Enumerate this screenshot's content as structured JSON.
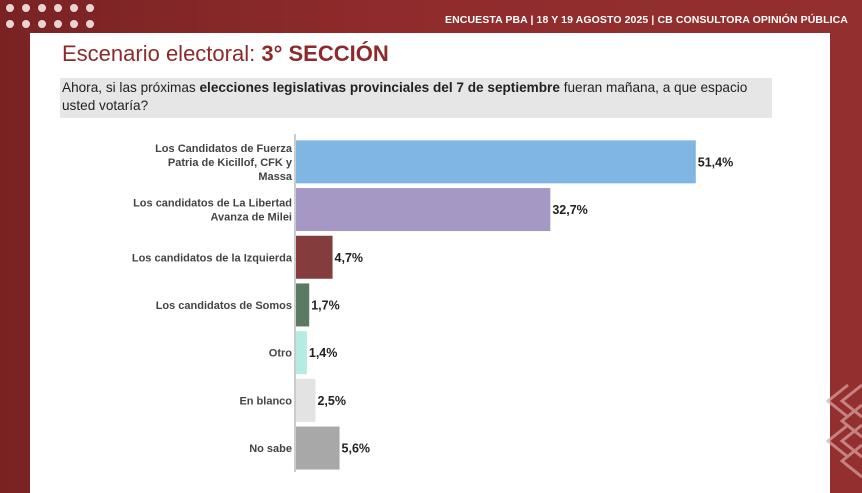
{
  "header": {
    "banner_text": "ENCUESTA PBA | 18 Y 19  AGOSTO 2025 | CB CONSULTORA OPINIÓN PÚBLICA"
  },
  "slide": {
    "title_prefix": "Escenario electoral: ",
    "title_accent": "3° SECCIÓN",
    "question_part1": "Ahora, si las próximas ",
    "question_bold": "elecciones legislativas provinciales del 7 de septiembre",
    "question_part2": " fueran mañana, a que espacio usted votaría?"
  },
  "chart_data": {
    "type": "bar",
    "orientation": "horizontal",
    "categories": [
      "Los Candidatos de Fuerza Patria de Kicillof, CFK y Massa",
      "Los candidatos de La Libertad Avanza de Milei",
      "Los candidatos de la Izquierda",
      "Los candidatos de Somos",
      "Otro",
      "En blanco",
      "No sabe"
    ],
    "values": [
      51.4,
      32.7,
      4.7,
      1.7,
      1.4,
      2.5,
      5.6
    ],
    "value_labels": [
      "51,4%",
      "32,7%",
      "4,7%",
      "1,7%",
      "1,4%",
      "2,5%",
      "5,6%"
    ],
    "colors": [
      "#7fb6e2",
      "#a598c4",
      "#843c3c",
      "#5c7a62",
      "#b3ece0",
      "#e3e3e3",
      "#a8a8a8"
    ],
    "xlim": [
      0,
      54
    ],
    "grid": false
  }
}
